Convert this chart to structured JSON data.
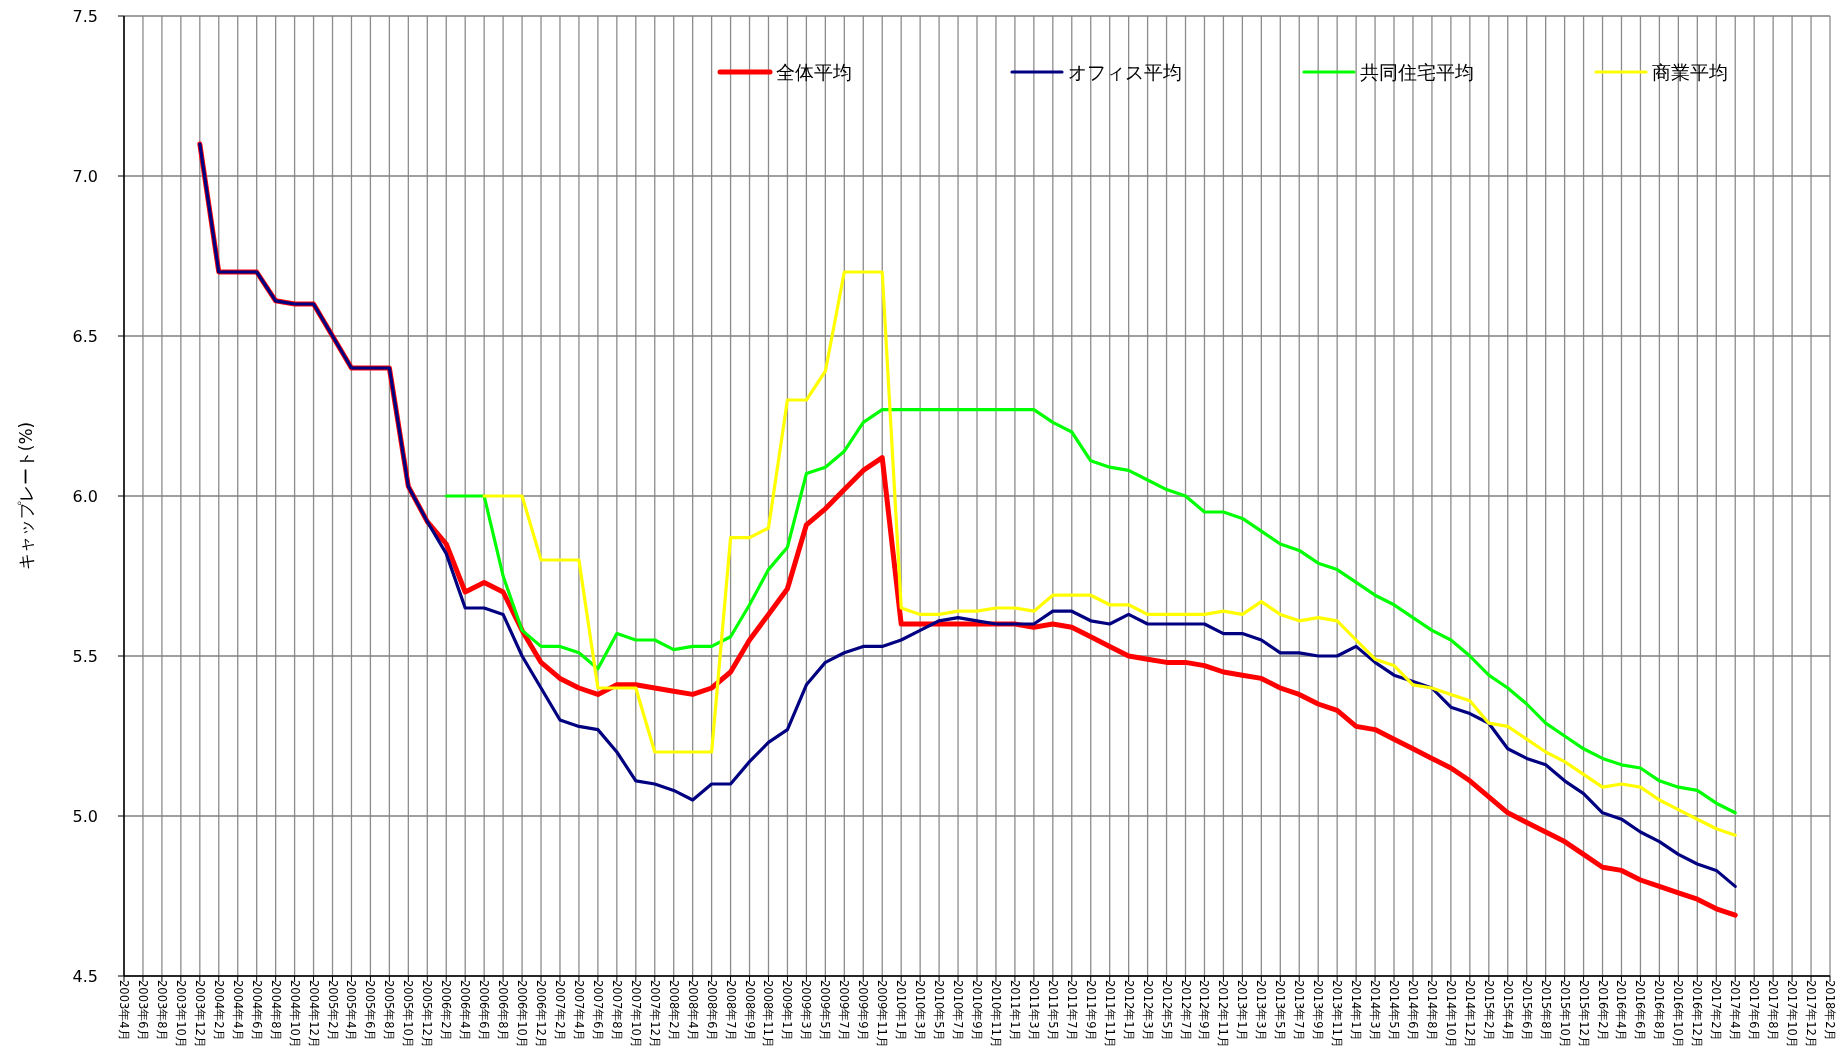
{
  "chart_data": {
    "type": "line",
    "ylabel": "キャップレート(%)",
    "categories": [
      "2003年4月",
      "2003年6月",
      "2003年8月",
      "2003年10月",
      "2003年12月",
      "2004年2月",
      "2004年4月",
      "2004年6月",
      "2004年8月",
      "2004年10月",
      "2004年12月",
      "2005年2月",
      "2005年4月",
      "2005年6月",
      "2005年8月",
      "2005年10月",
      "2005年12月",
      "2006年2月",
      "2006年4月",
      "2006年6月",
      "2006年8月",
      "2006年10月",
      "2006年12月",
      "2007年2月",
      "2007年4月",
      "2007年6月",
      "2007年8月",
      "2007年10月",
      "2007年12月",
      "2008年2月",
      "2008年4月",
      "2008年6月",
      "2008年7月",
      "2008年9月",
      "2008年11月",
      "2009年1月",
      "2009年3月",
      "2009年5月",
      "2009年7月",
      "2009年9月",
      "2009年11月",
      "2010年1月",
      "2010年3月",
      "2010年5月",
      "2010年7月",
      "2010年9月",
      "2010年11月",
      "2011年1月",
      "2011年3月",
      "2011年5月",
      "2011年7月",
      "2011年9月",
      "2011年11月",
      "2012年1月",
      "2012年3月",
      "2012年5月",
      "2012年7月",
      "2012年9月",
      "2012年11月",
      "2013年1月",
      "2013年3月",
      "2013年5月",
      "2013年7月",
      "2013年9月",
      "2013年11月",
      "2014年1月",
      "2014年3月",
      "2014年5月",
      "2014年6月",
      "2014年8月",
      "2014年10月",
      "2014年12月",
      "2015年2月",
      "2015年4月",
      "2015年6月",
      "2015年8月",
      "2015年10月",
      "2015年12月",
      "2016年2月",
      "2016年4月",
      "2016年6月",
      "2016年8月",
      "2016年10月",
      "2016年12月",
      "2017年2月",
      "2017年4月",
      "2017年6月",
      "2017年8月",
      "2017年10月",
      "2017年12月",
      "2018年2月"
    ],
    "series": [
      {
        "name": "全体平均",
        "color": "#ff0000",
        "values": [
          null,
          null,
          null,
          null,
          7.1,
          6.7,
          6.7,
          6.7,
          6.61,
          6.6,
          6.6,
          6.5,
          6.4,
          6.4,
          6.4,
          6.03,
          5.92,
          5.85,
          5.7,
          5.73,
          5.7,
          5.58,
          5.48,
          5.43,
          5.4,
          5.38,
          5.41,
          5.41,
          5.4,
          5.39,
          5.38,
          5.4,
          5.45,
          5.55,
          5.63,
          5.71,
          5.91,
          5.96,
          6.02,
          6.08,
          6.12,
          5.6,
          5.6,
          5.6,
          5.6,
          5.6,
          5.6,
          5.6,
          5.59,
          5.6,
          5.59,
          5.56,
          5.53,
          5.5,
          5.49,
          5.48,
          5.48,
          5.47,
          5.45,
          5.44,
          5.43,
          5.4,
          5.38,
          5.35,
          5.33,
          5.28,
          5.27,
          5.24,
          5.21,
          5.18,
          5.15,
          5.11,
          5.06,
          5.01,
          4.98,
          4.95,
          4.92,
          4.88,
          4.84,
          4.83,
          4.8,
          4.78,
          4.76,
          4.74,
          4.71,
          4.69,
          null,
          null,
          null,
          null,
          null
        ]
      },
      {
        "name": "オフィス平均",
        "color": "#000080",
        "values": [
          null,
          null,
          null,
          null,
          7.1,
          6.7,
          6.7,
          6.7,
          6.61,
          6.6,
          6.6,
          6.5,
          6.4,
          6.4,
          6.4,
          6.03,
          5.92,
          5.82,
          5.65,
          5.65,
          5.63,
          5.5,
          5.4,
          5.3,
          5.28,
          5.27,
          5.2,
          5.11,
          5.1,
          5.08,
          5.05,
          5.1,
          5.1,
          5.17,
          5.23,
          5.27,
          5.41,
          5.48,
          5.51,
          5.53,
          5.53,
          5.55,
          5.58,
          5.61,
          5.62,
          5.61,
          5.6,
          5.6,
          5.6,
          5.64,
          5.64,
          5.61,
          5.6,
          5.63,
          5.6,
          5.6,
          5.6,
          5.6,
          5.57,
          5.57,
          5.55,
          5.51,
          5.51,
          5.5,
          5.5,
          5.53,
          5.48,
          5.44,
          5.42,
          5.4,
          5.34,
          5.32,
          5.29,
          5.21,
          5.18,
          5.16,
          5.11,
          5.07,
          5.01,
          4.99,
          4.95,
          4.92,
          4.88,
          4.85,
          4.83,
          4.78,
          null,
          null,
          null,
          null,
          null
        ]
      },
      {
        "name": "共同住宅平均",
        "color": "#00ff00",
        "values": [
          null,
          null,
          null,
          null,
          null,
          null,
          null,
          null,
          null,
          null,
          null,
          null,
          null,
          null,
          null,
          null,
          null,
          6.0,
          6.0,
          6.0,
          5.75,
          5.58,
          5.53,
          5.53,
          5.51,
          5.46,
          5.57,
          5.55,
          5.55,
          5.52,
          5.53,
          5.53,
          5.56,
          5.66,
          5.77,
          5.84,
          6.07,
          6.09,
          6.14,
          6.23,
          6.27,
          6.27,
          6.27,
          6.27,
          6.27,
          6.27,
          6.27,
          6.27,
          6.27,
          6.23,
          6.2,
          6.11,
          6.09,
          6.08,
          6.05,
          6.02,
          6.0,
          5.95,
          5.95,
          5.93,
          5.89,
          5.85,
          5.83,
          5.79,
          5.77,
          5.73,
          5.69,
          5.66,
          5.62,
          5.58,
          5.55,
          5.5,
          5.44,
          5.4,
          5.35,
          5.29,
          5.25,
          5.21,
          5.18,
          5.16,
          5.15,
          5.11,
          5.09,
          5.08,
          5.04,
          5.01,
          null,
          null,
          null,
          null,
          null
        ]
      },
      {
        "name": "商業平均",
        "color": "#ffff00",
        "values": [
          null,
          null,
          null,
          null,
          null,
          null,
          null,
          null,
          null,
          null,
          null,
          null,
          null,
          null,
          null,
          null,
          null,
          null,
          null,
          6.0,
          6.0,
          6.0,
          5.8,
          5.8,
          5.8,
          5.4,
          5.4,
          5.4,
          5.2,
          5.2,
          5.2,
          5.2,
          5.87,
          5.87,
          5.9,
          6.3,
          6.3,
          6.39,
          6.7,
          6.7,
          6.7,
          5.65,
          5.63,
          5.63,
          5.64,
          5.64,
          5.65,
          5.65,
          5.64,
          5.69,
          5.69,
          5.69,
          5.66,
          5.66,
          5.63,
          5.63,
          5.63,
          5.63,
          5.64,
          5.63,
          5.67,
          5.63,
          5.61,
          5.62,
          5.61,
          5.55,
          5.49,
          5.47,
          5.41,
          5.4,
          5.38,
          5.36,
          5.29,
          5.28,
          5.24,
          5.2,
          5.17,
          5.13,
          5.09,
          5.1,
          5.09,
          5.05,
          5.02,
          4.99,
          4.96,
          4.94,
          null,
          null,
          null,
          null,
          null
        ]
      }
    ],
    "ylim": [
      4.5,
      7.5
    ],
    "yticks": [
      {
        "value": 4.5,
        "label": "4.5"
      },
      {
        "value": 5,
        "label": "5.0"
      },
      {
        "value": 5.5,
        "label": "5.5"
      },
      {
        "value": 6,
        "label": "6.0"
      },
      {
        "value": 6.5,
        "label": "6.5"
      },
      {
        "value": 7,
        "label": "7.0"
      },
      {
        "value": 7.5,
        "label": "7.5"
      }
    ],
    "grid": true,
    "legend": "top right"
  }
}
